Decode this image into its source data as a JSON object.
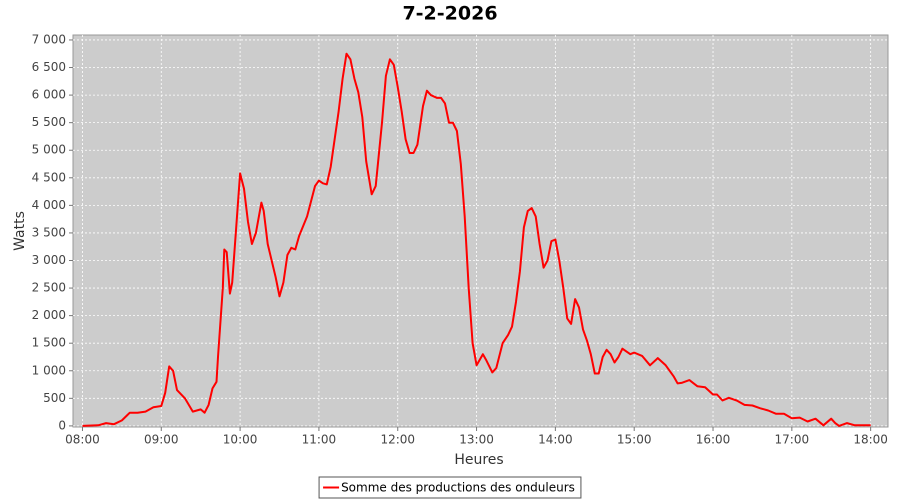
{
  "chart_data": {
    "type": "line",
    "title": "7-2-2026",
    "x_label": "Heures",
    "y_label": "Watts",
    "x": [
      8.0,
      8.2,
      8.3,
      8.4,
      8.5,
      8.6,
      8.7,
      8.8,
      8.9,
      9.0,
      9.05,
      9.1,
      9.15,
      9.2,
      9.3,
      9.4,
      9.5,
      9.55,
      9.6,
      9.65,
      9.7,
      9.72,
      9.78,
      9.8,
      9.83,
      9.87,
      9.9,
      9.95,
      10.0,
      10.05,
      10.1,
      10.15,
      10.2,
      10.27,
      10.3,
      10.35,
      10.45,
      10.5,
      10.55,
      10.6,
      10.65,
      10.7,
      10.75,
      10.85,
      10.95,
      11.0,
      11.05,
      11.1,
      11.15,
      11.25,
      11.3,
      11.35,
      11.4,
      11.45,
      11.5,
      11.55,
      11.6,
      11.67,
      11.72,
      11.8,
      11.85,
      11.9,
      11.95,
      12.0,
      12.05,
      12.1,
      12.15,
      12.2,
      12.25,
      12.32,
      12.37,
      12.42,
      12.5,
      12.55,
      12.6,
      12.65,
      12.7,
      12.75,
      12.8,
      12.85,
      12.9,
      12.95,
      13.0,
      13.08,
      13.12,
      13.2,
      13.25,
      13.33,
      13.4,
      13.45,
      13.5,
      13.55,
      13.6,
      13.65,
      13.7,
      13.75,
      13.8,
      13.85,
      13.9,
      13.95,
      14.0,
      14.05,
      14.1,
      14.15,
      14.2,
      14.25,
      14.3,
      14.35,
      14.4,
      14.45,
      14.5,
      14.55,
      14.6,
      14.65,
      14.7,
      14.75,
      14.8,
      14.85,
      14.95,
      15.0,
      15.1,
      15.2,
      15.3,
      15.4,
      15.5,
      15.55,
      15.6,
      15.7,
      15.8,
      15.9,
      16.0,
      16.05,
      16.12,
      16.2,
      16.3,
      16.4,
      16.5,
      16.6,
      16.7,
      16.8,
      16.9,
      17.0,
      17.1,
      17.2,
      17.3,
      17.4,
      17.5,
      17.55,
      17.6,
      17.7,
      17.8,
      18.0
    ],
    "series": [
      {
        "name": "Somme des productions des onduleurs",
        "color": "#ff0000",
        "values": [
          0,
          10,
          50,
          30,
          100,
          240,
          240,
          260,
          340,
          360,
          600,
          1080,
          1000,
          650,
          500,
          260,
          300,
          240,
          380,
          680,
          800,
          1250,
          2500,
          3200,
          3150,
          2400,
          2600,
          3600,
          4580,
          4300,
          3700,
          3300,
          3500,
          4050,
          3900,
          3300,
          2700,
          2350,
          2600,
          3100,
          3230,
          3200,
          3450,
          3800,
          4350,
          4450,
          4400,
          4380,
          4700,
          5700,
          6300,
          6750,
          6650,
          6300,
          6050,
          5600,
          4800,
          4200,
          4350,
          5500,
          6350,
          6650,
          6550,
          6150,
          5700,
          5200,
          4950,
          4950,
          5100,
          5800,
          6080,
          6000,
          5950,
          5950,
          5850,
          5500,
          5500,
          5350,
          4750,
          3800,
          2500,
          1500,
          1100,
          1300,
          1200,
          970,
          1050,
          1500,
          1650,
          1800,
          2250,
          2800,
          3600,
          3900,
          3950,
          3800,
          3300,
          2870,
          3000,
          3350,
          3380,
          3000,
          2500,
          1950,
          1850,
          2300,
          2150,
          1750,
          1550,
          1300,
          950,
          950,
          1250,
          1380,
          1300,
          1150,
          1250,
          1400,
          1300,
          1330,
          1270,
          1100,
          1230,
          1100,
          900,
          770,
          780,
          830,
          720,
          700,
          570,
          570,
          460,
          510,
          460,
          380,
          370,
          320,
          280,
          220,
          220,
          140,
          150,
          80,
          130,
          10,
          130,
          50,
          0,
          50,
          10,
          10
        ]
      }
    ],
    "xlim": [
      7.88,
      18.22
    ],
    "xticks": [
      {
        "value": 8,
        "label": "08:00"
      },
      {
        "value": 9,
        "label": "09:00"
      },
      {
        "value": 10,
        "label": "10:00"
      },
      {
        "value": 11,
        "label": "11:00"
      },
      {
        "value": 12,
        "label": "12:00"
      },
      {
        "value": 13,
        "label": "13:00"
      },
      {
        "value": 14,
        "label": "14:00"
      },
      {
        "value": 15,
        "label": "15:00"
      },
      {
        "value": 16,
        "label": "16:00"
      },
      {
        "value": 17,
        "label": "17:00"
      },
      {
        "value": 18,
        "label": "18:00"
      }
    ],
    "ylim": [
      -20,
      7090
    ],
    "yticks": [
      0,
      500,
      {
        "value": 1000,
        "label": "1 000"
      },
      {
        "value": 1500,
        "label": "1 500"
      },
      {
        "value": 2000,
        "label": "2 000"
      },
      {
        "value": 2500,
        "label": "2 500"
      },
      {
        "value": 3000,
        "label": "3 000"
      },
      {
        "value": 3500,
        "label": "3 500"
      },
      {
        "value": 4000,
        "label": "4 000"
      },
      {
        "value": 4500,
        "label": "4 500"
      },
      {
        "value": 5000,
        "label": "5 000"
      },
      {
        "value": 5500,
        "label": "5 500"
      },
      {
        "value": 6000,
        "label": "6 000"
      },
      {
        "value": 6500,
        "label": "6 500"
      },
      {
        "value": 7000,
        "label": "7 000"
      }
    ],
    "grid": true,
    "legend": "bottom"
  }
}
